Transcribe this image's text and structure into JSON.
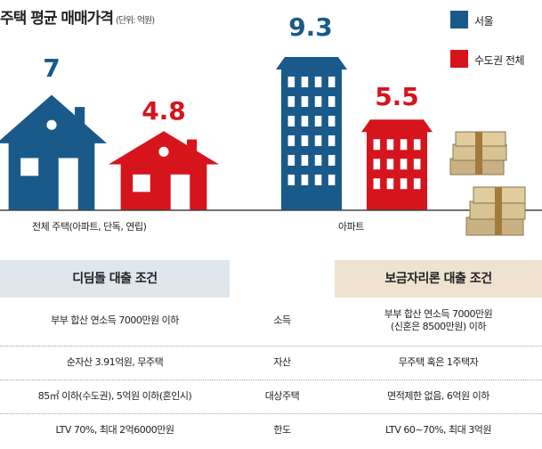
{
  "colors": {
    "seoul": "#1a5a8a",
    "metro": "#d6141c",
    "axis": "#444444",
    "head_left_bg": "#dfe6ec",
    "head_right_bg": "#efe2cf"
  },
  "header": {
    "title": "주택 평균 매매가격",
    "unit": "(단위: 억원)"
  },
  "legend": [
    {
      "label": "서울",
      "color": "#1a5a8a"
    },
    {
      "label": "수도권 전체",
      "color": "#d6141c"
    }
  ],
  "chart_data": {
    "type": "bar",
    "title": "주택 평균 매매가격",
    "categories": [
      "전체 주택(아파트, 단독, 연립)",
      "아파트"
    ],
    "series": [
      {
        "name": "서울",
        "values": [
          7,
          9.3
        ]
      },
      {
        "name": "수도권 전체",
        "values": [
          4.8,
          5.5
        ]
      }
    ],
    "value_labels": [
      "7",
      "4.8",
      "9.3",
      "5.5"
    ],
    "ylim": [
      0,
      10
    ],
    "grid": false,
    "legend_position": "top-right"
  },
  "table": {
    "left_header": "디딤돌 대출 조건",
    "right_header": "보금자리론 대출 조건",
    "rows": [
      {
        "left": "부부 합산 연소득 7000만원 이하",
        "mid": "소득",
        "right": "부부 합산 연소득 7000만원\n(신혼은 8500만원) 이하"
      },
      {
        "left": "순자산 3.91억원, 무주택",
        "mid": "자산",
        "right": "무주택 혹은 1주택자"
      },
      {
        "left": "85㎡ 이하(수도권), 5억원 이하(혼인시)",
        "mid": "대상주택",
        "right": "면적제한 없음, 6억원 이하"
      },
      {
        "left": "LTV 70%, 최대 2억6000만원",
        "mid": "한도",
        "right": "LTV 60~70%, 최대 3억원"
      }
    ]
  }
}
